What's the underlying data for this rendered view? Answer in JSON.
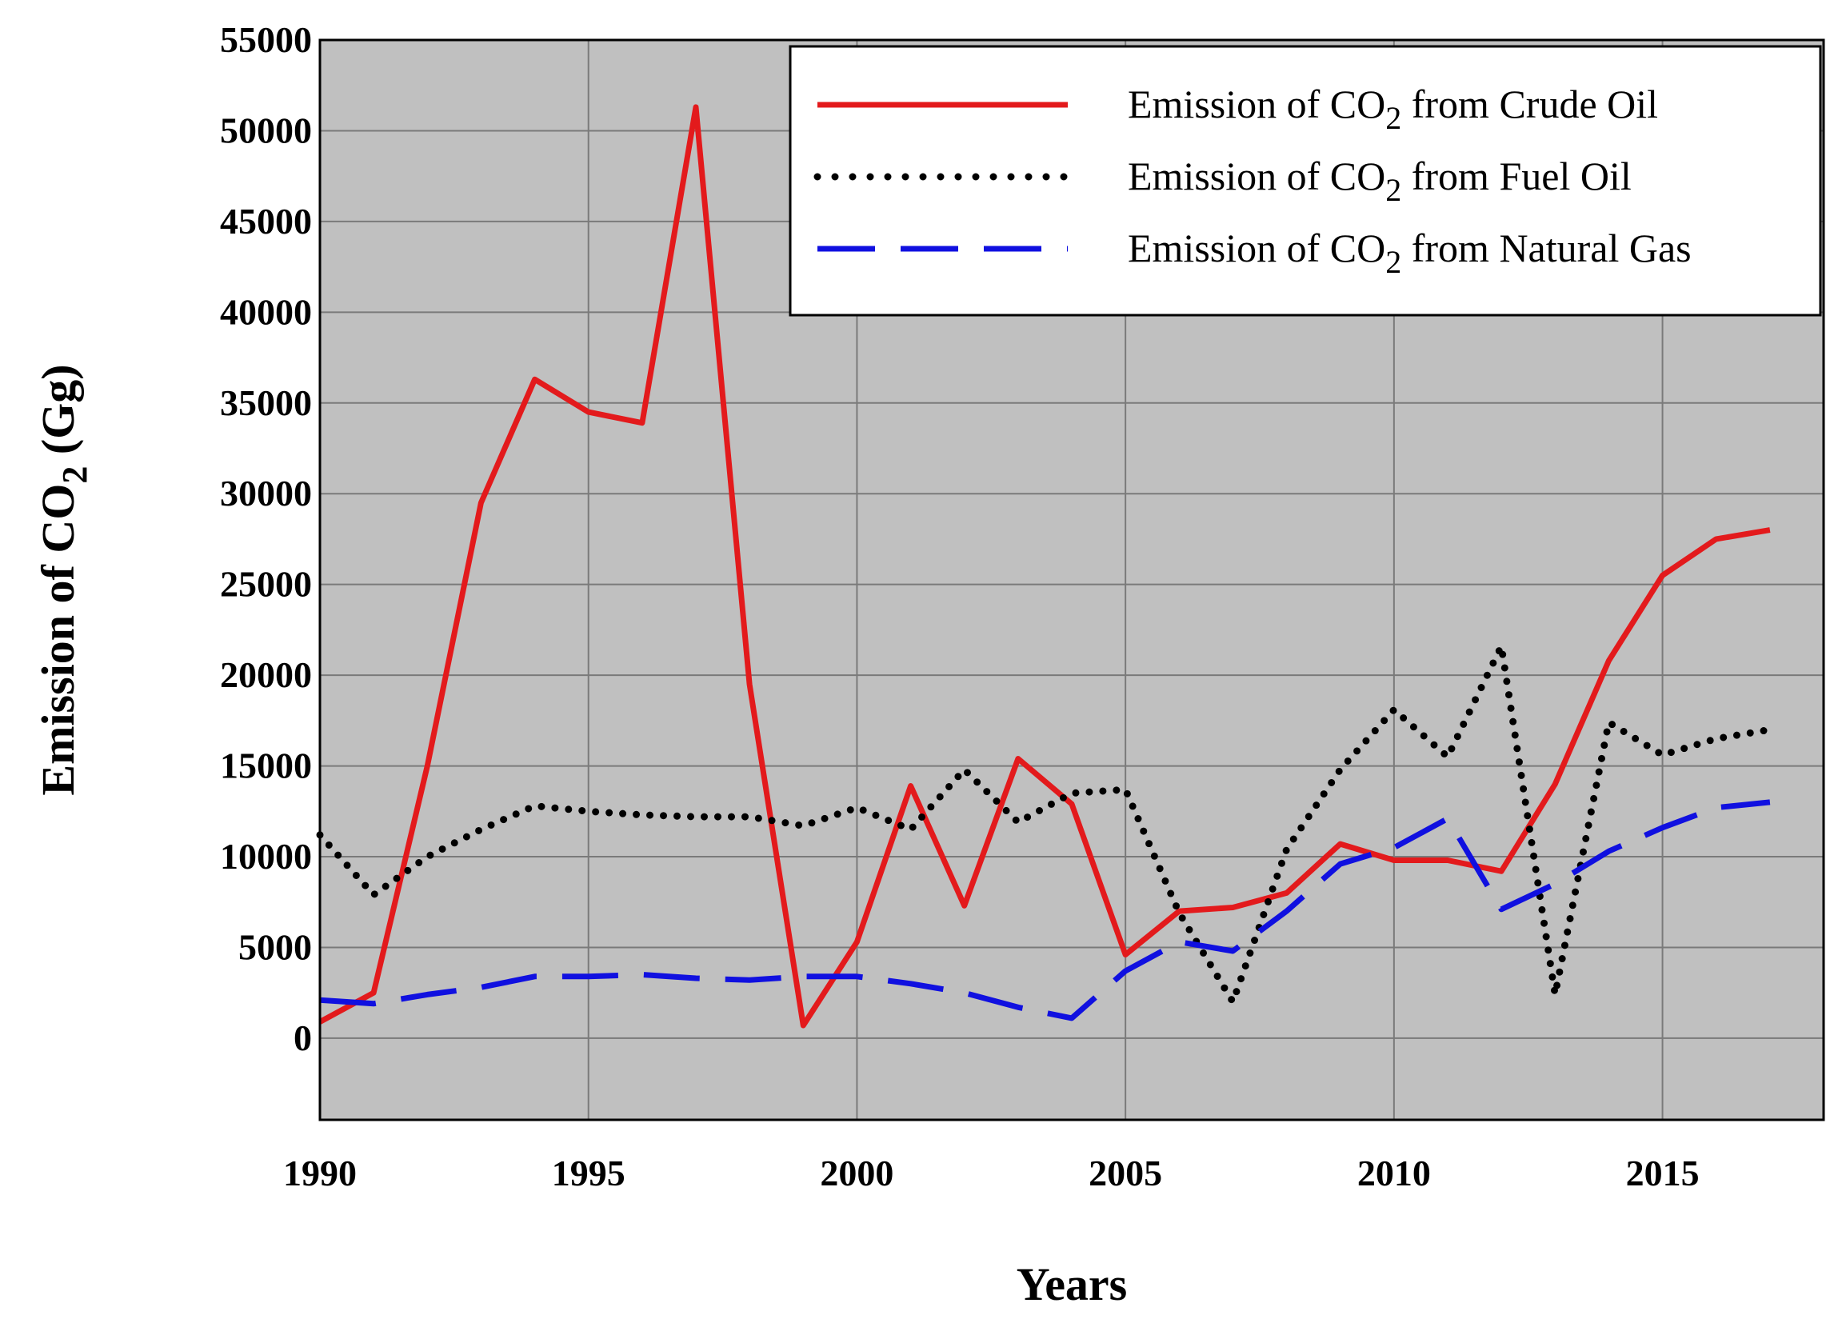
{
  "chart_data": {
    "type": "line",
    "title": "",
    "xlabel": "Years",
    "ylabel_prefix": "Emission of CO",
    "ylabel_subscript": "2",
    "ylabel_suffix": " (Gg)",
    "xlim": [
      1990,
      2018
    ],
    "ylim": [
      -4500,
      55000
    ],
    "x_ticks": [
      1990,
      1995,
      2000,
      2005,
      2010,
      2015
    ],
    "y_ticks": [
      0,
      5000,
      10000,
      15000,
      20000,
      25000,
      30000,
      35000,
      40000,
      45000,
      50000,
      55000
    ],
    "x_tick_labels": [
      "1990",
      "1995",
      "2000",
      "2005",
      "2010",
      "2015"
    ],
    "y_tick_labels": [
      "0",
      "5000",
      "10000",
      "15000",
      "20000",
      "25000",
      "30000",
      "35000",
      "40000",
      "45000",
      "50000",
      "55000"
    ],
    "grid": true,
    "background": "#c0c0c0",
    "legend_position": "top-right",
    "x": [
      1990,
      1991,
      1992,
      1993,
      1994,
      1995,
      1996,
      1997,
      1998,
      1999,
      2000,
      2001,
      2002,
      2003,
      2004,
      2005,
      2006,
      2007,
      2008,
      2009,
      2010,
      2011,
      2012,
      2013,
      2014,
      2015,
      2016,
      2017
    ],
    "series": [
      {
        "name": "crude-oil",
        "legend_prefix": "Emission of CO",
        "legend_subscript": "2",
        "legend_suffix": " from Crude Oil",
        "color": "#e31a1c",
        "style": "solid",
        "values": [
          900,
          2500,
          15000,
          29500,
          36300,
          34500,
          33900,
          51300,
          19500,
          700,
          5300,
          13900,
          7300,
          15400,
          12900,
          4600,
          7000,
          7200,
          8000,
          10700,
          9800,
          9800,
          9200,
          14000,
          20800,
          25500,
          27500,
          28000
        ]
      },
      {
        "name": "fuel-oil",
        "legend_prefix": "Emission of CO",
        "legend_subscript": "2",
        "legend_suffix": " from Fuel Oil",
        "color": "#000000",
        "style": "dotted",
        "values": [
          11200,
          7900,
          10000,
          11500,
          12800,
          12500,
          12300,
          12200,
          12200,
          11700,
          12700,
          11500,
          14800,
          11900,
          13500,
          13700,
          6900,
          2000,
          10400,
          14800,
          18100,
          15500,
          21600,
          2400,
          17400,
          15600,
          16500,
          17000
        ]
      },
      {
        "name": "natural-gas",
        "legend_prefix": "Emission of CO",
        "legend_subscript": "2",
        "legend_suffix": " from Natural Gas",
        "color": "#1010e0",
        "style": "dashed",
        "values": [
          2100,
          1900,
          2400,
          2800,
          3400,
          3400,
          3500,
          3300,
          3200,
          3400,
          3400,
          3000,
          2500,
          1700,
          1100,
          3700,
          5300,
          4800,
          7000,
          9600,
          10500,
          12100,
          7100,
          8500,
          10300,
          11600,
          12700,
          13000
        ]
      }
    ]
  }
}
